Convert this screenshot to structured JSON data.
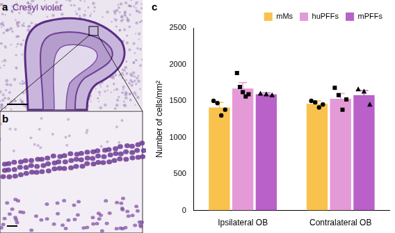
{
  "panels": [
    {
      "label": "a",
      "caption": "Cresyl violet"
    },
    {
      "label": "b"
    },
    {
      "label": "c"
    }
  ],
  "chart_data": {
    "type": "bar",
    "y_label": "Number of cells/mm²",
    "categories": [
      "Ipsilateral OB",
      "Contralateral OB"
    ],
    "series": [
      {
        "name": "mMs",
        "color": "#f8c24d",
        "marker": "circle",
        "values": [
          1410,
          1460
        ],
        "errors": [
          70,
          40
        ],
        "points": [
          [
            1500,
            1470,
            1300,
            1380
          ],
          [
            1500,
            1480,
            1410,
            1450
          ]
        ]
      },
      {
        "name": "huPFFs",
        "color": "#e59ad8",
        "marker": "square",
        "values": [
          1670,
          1530
        ],
        "errors": [
          80,
          70
        ],
        "points": [
          [
            1880,
            1690,
            1620,
            1560,
            1590
          ],
          [
            1680,
            1580,
            1380,
            1520
          ]
        ]
      },
      {
        "name": "mPFFs",
        "color": "#b961c8",
        "marker": "triangle",
        "values": [
          1590,
          1580
        ],
        "errors": [
          20,
          60
        ],
        "points": [
          [
            1600,
            1590,
            1580
          ],
          [
            1660,
            1630,
            1450
          ]
        ]
      }
    ],
    "ylim": [
      0,
      2500
    ],
    "yticks": [
      0,
      500,
      1000,
      1500,
      2000,
      2500
    ],
    "grid": false,
    "legend": "upper right"
  }
}
